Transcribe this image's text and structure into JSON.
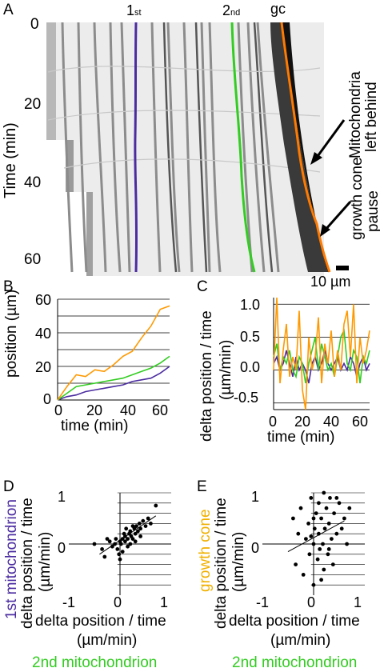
{
  "panels": {
    "A": {
      "letter": "A",
      "ylabel": "Time (min)",
      "yticks": [
        "0",
        "20",
        "40",
        "60"
      ],
      "track_labels": {
        "first": "1",
        "first_sub": "st",
        "second": "2",
        "second_sub": "nd",
        "gc": "gc"
      },
      "annotations": [
        "Mitochondria",
        "left behind",
        "growth cone",
        "pause"
      ],
      "scalebar": "10 µm",
      "colors": {
        "first": "#4b2ca0",
        "second": "#33cc22",
        "gc": "#ff7a00"
      }
    },
    "B": {
      "letter": "B",
      "ylabel": "position (µm)",
      "xlabel": "time (min)",
      "yticks": [
        "0",
        "20",
        "40",
        "60"
      ],
      "xticks": [
        "0",
        "20",
        "40",
        "60"
      ]
    },
    "C": {
      "letter": "C",
      "ylabel_1": "delta position / time",
      "ylabel_2": "(µm/min)",
      "xlabel": "time (min)",
      "yticks": [
        "1.0",
        "0.5",
        "0.0",
        "-0.5"
      ],
      "xticks": [
        "0",
        "20",
        "40",
        "60"
      ]
    },
    "D": {
      "letter": "D",
      "ylabel_colored": "1st mitochondrion",
      "ylabel_1": "delta position / time",
      "ylabel_2": "(µm/min)",
      "xlabel_1": "delta position / time",
      "xlabel_2": "(µm/min)",
      "xlabel_colored": "2nd mitochondrion",
      "yticks": [
        "1",
        "0"
      ],
      "xticks": [
        "-1",
        "0",
        "1"
      ]
    },
    "E": {
      "letter": "E",
      "ylabel_colored": "growth cone",
      "ylabel_1": "delta position / time",
      "ylabel_2": "(µm/min)",
      "xlabel_1": "delta position / time",
      "xlabel_2": "(µm/min)",
      "xlabel_colored": "2nd mitochondrion",
      "yticks": [
        "1",
        "0"
      ],
      "xticks": [
        "-1",
        "0",
        "1"
      ]
    }
  },
  "chart_data": [
    {
      "type": "line",
      "panel": "B",
      "xlabel": "time (min)",
      "ylabel": "position (µm)",
      "xlim": [
        0,
        60
      ],
      "ylim": [
        0,
        60
      ],
      "grid": true,
      "x": [
        0,
        5,
        10,
        15,
        20,
        25,
        30,
        35,
        40,
        45,
        50,
        55,
        60
      ],
      "series": [
        {
          "color": "#4b2ca0",
          "values": [
            0,
            2,
            3,
            5,
            6,
            7,
            8,
            9,
            11,
            12,
            13,
            16,
            20
          ]
        },
        {
          "color": "#33cc22",
          "values": [
            0,
            4,
            8,
            9,
            10,
            11,
            12,
            13,
            15,
            17,
            19,
            22,
            26
          ]
        },
        {
          "color": "#ff9900",
          "values": [
            0,
            8,
            15,
            14,
            18,
            17,
            21,
            26,
            29,
            37,
            44,
            54,
            56
          ]
        }
      ]
    },
    {
      "type": "line",
      "panel": "C",
      "xlabel": "time (min)",
      "ylabel": "delta position / time (µm/min)",
      "xlim": [
        0,
        60
      ],
      "ylim": [
        -0.6,
        1.1
      ],
      "grid": true,
      "x": [
        0,
        2,
        4,
        6,
        8,
        10,
        12,
        14,
        16,
        18,
        20,
        22,
        24,
        26,
        28,
        30,
        32,
        34,
        36,
        38,
        40,
        42,
        44,
        46,
        48,
        50,
        52,
        54,
        56,
        58,
        60
      ],
      "series": [
        {
          "color": "#4b2ca0",
          "values": [
            0.1,
            0.2,
            0.0,
            0.1,
            0.3,
            0.1,
            -0.1,
            0.2,
            0.0,
            0.1,
            0.0,
            -0.2,
            0.1,
            0.2,
            0.0,
            0.1,
            0.3,
            0.1,
            0.0,
            0.1,
            0.2,
            0.0,
            0.1,
            0.0,
            0.2,
            0.1,
            -0.1,
            0.1,
            0.2,
            0.0,
            0.1
          ]
        },
        {
          "color": "#33cc22",
          "values": [
            0.2,
            0.4,
            0.0,
            0.2,
            0.1,
            0.3,
            0.0,
            -0.1,
            0.2,
            0.1,
            -0.2,
            0.1,
            0.3,
            0.5,
            0.0,
            0.4,
            0.2,
            0.0,
            0.1,
            -0.1,
            0.2,
            0.5,
            0.6,
            0.1,
            0.0,
            0.3,
            0.2,
            -0.2,
            0.2,
            0.1,
            0.3
          ]
        },
        {
          "color": "#ff9900",
          "values": [
            0.0,
            1.1,
            -0.2,
            0.3,
            0.7,
            -0.1,
            0.2,
            0.0,
            0.9,
            -0.3,
            -0.6,
            0.5,
            0.0,
            0.2,
            0.8,
            -0.2,
            0.4,
            0.1,
            0.6,
            -0.1,
            0.3,
            0.0,
            0.7,
            0.9,
            0.2,
            1.0,
            -0.2,
            0.5,
            0.1,
            0.3,
            0.6
          ]
        }
      ]
    },
    {
      "type": "scatter",
      "panel": "D",
      "xlabel": "delta position / time (µm/min) – 2nd mitochondrion",
      "ylabel": "delta position / time (µm/min) – 1st mitochondrion",
      "xlim": [
        -1,
        1
      ],
      "ylim": [
        -1,
        1
      ],
      "points": [
        [
          -0.5,
          0.0
        ],
        [
          -0.35,
          -0.1
        ],
        [
          -0.3,
          -0.25
        ],
        [
          -0.2,
          0.05
        ],
        [
          -0.15,
          -0.05
        ],
        [
          -0.1,
          0.0
        ],
        [
          -0.08,
          0.1
        ],
        [
          -0.05,
          -0.1
        ],
        [
          0.0,
          0.05
        ],
        [
          0.02,
          0.0
        ],
        [
          0.05,
          0.1
        ],
        [
          0.08,
          0.2
        ],
        [
          0.1,
          0.15
        ],
        [
          0.1,
          0.05
        ],
        [
          0.12,
          0.3
        ],
        [
          0.15,
          0.1
        ],
        [
          0.18,
          0.2
        ],
        [
          0.2,
          0.25
        ],
        [
          0.22,
          0.15
        ],
        [
          0.25,
          0.1
        ],
        [
          0.28,
          0.3
        ],
        [
          0.3,
          0.2
        ],
        [
          0.32,
          0.35
        ],
        [
          0.35,
          0.25
        ],
        [
          0.38,
          0.4
        ],
        [
          0.4,
          0.3
        ],
        [
          0.45,
          0.45
        ],
        [
          0.5,
          0.35
        ],
        [
          0.55,
          0.5
        ],
        [
          0.6,
          0.4
        ],
        [
          0.7,
          0.75
        ],
        [
          -0.02,
          -0.2
        ],
        [
          0.0,
          -0.3
        ],
        [
          0.05,
          -0.15
        ],
        [
          0.15,
          -0.05
        ],
        [
          0.2,
          0.0
        ],
        [
          0.25,
          0.35
        ],
        [
          0.3,
          0.05
        ],
        [
          0.4,
          0.15
        ],
        [
          -0.25,
          0.1
        ]
      ],
      "fit": [
        [
          -0.4,
          -0.2
        ],
        [
          0.7,
          0.55
        ]
      ]
    },
    {
      "type": "scatter",
      "panel": "E",
      "xlabel": "delta position / time (µm/min) – 2nd mitochondrion",
      "ylabel": "delta position / time (µm/min) – growth cone",
      "xlim": [
        -1,
        1
      ],
      "ylim": [
        -1,
        1
      ],
      "points": [
        [
          -0.4,
          0.5
        ],
        [
          -0.35,
          -0.4
        ],
        [
          -0.3,
          0.2
        ],
        [
          -0.25,
          0.7
        ],
        [
          -0.2,
          -0.6
        ],
        [
          -0.15,
          0.1
        ],
        [
          -0.1,
          0.4
        ],
        [
          -0.08,
          -0.2
        ],
        [
          -0.05,
          0.9
        ],
        [
          0.0,
          0.0
        ],
        [
          0.0,
          -0.8
        ],
        [
          0.02,
          0.3
        ],
        [
          0.05,
          0.6
        ],
        [
          0.08,
          -0.3
        ],
        [
          0.1,
          0.2
        ],
        [
          0.1,
          0.8
        ],
        [
          0.12,
          -0.1
        ],
        [
          0.15,
          0.5
        ],
        [
          0.18,
          0.0
        ],
        [
          0.2,
          1.0
        ],
        [
          0.2,
          -0.5
        ],
        [
          0.22,
          0.3
        ],
        [
          0.25,
          0.7
        ],
        [
          0.28,
          -0.2
        ],
        [
          0.3,
          0.4
        ],
        [
          0.32,
          0.9
        ],
        [
          0.35,
          0.1
        ],
        [
          0.38,
          -0.4
        ],
        [
          0.4,
          0.6
        ],
        [
          0.45,
          0.2
        ],
        [
          0.5,
          0.8
        ],
        [
          0.55,
          0.3
        ],
        [
          0.6,
          0.5
        ],
        [
          0.65,
          0.0
        ],
        [
          0.7,
          0.7
        ],
        [
          -0.05,
          0.15
        ],
        [
          0.0,
          0.5
        ],
        [
          0.15,
          -0.7
        ],
        [
          0.3,
          -0.1
        ],
        [
          0.45,
          0.9
        ]
      ],
      "fit": [
        [
          -0.5,
          -0.15
        ],
        [
          0.6,
          0.45
        ]
      ]
    }
  ]
}
